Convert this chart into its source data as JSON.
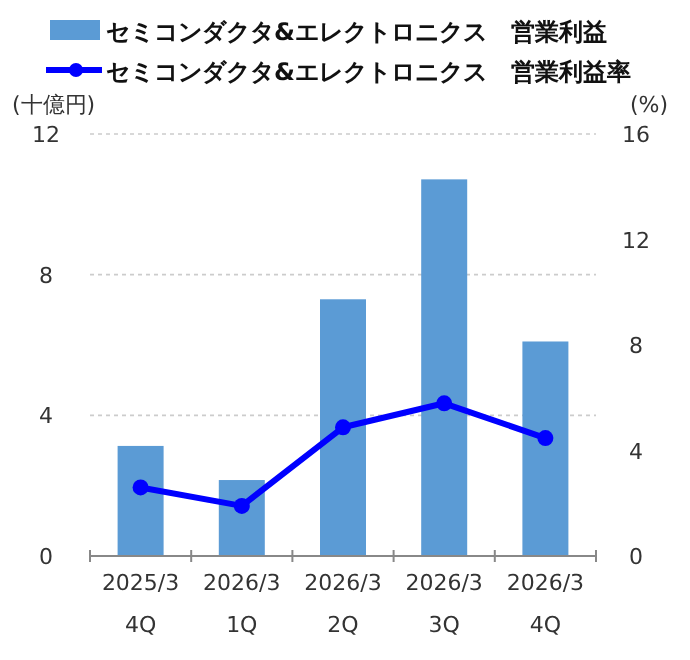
{
  "chart_data": {
    "type": "bar",
    "categories": [
      "2025/3 4Q",
      "2026/3 1Q",
      "2026/3 2Q",
      "2026/3 3Q",
      "2026/3 4Q"
    ],
    "ylabel": "(十億円)",
    "y2label": "(%)",
    "ylim": [
      0,
      12
    ],
    "yticks": [
      0,
      4,
      8,
      12
    ],
    "y2lim": [
      0,
      16
    ],
    "y2ticks": [
      0,
      4,
      8,
      12,
      16
    ],
    "grid": "y",
    "legend": "top left",
    "series": [
      {
        "name": "セミコンダクタ&エレクトロニクス　営業利益",
        "color": "#5b9bd5",
        "values": [
          3.13,
          2.16,
          7.3,
          10.71,
          6.1
        ]
      },
      {
        "name": "セミコンダクタ&エレクトロニクス　営業利益率",
        "type": "line",
        "axis": "y2",
        "color": "#0000ff",
        "marker": "circle",
        "values": [
          2.6,
          1.9,
          4.88,
          5.79,
          4.47
        ]
      }
    ]
  }
}
